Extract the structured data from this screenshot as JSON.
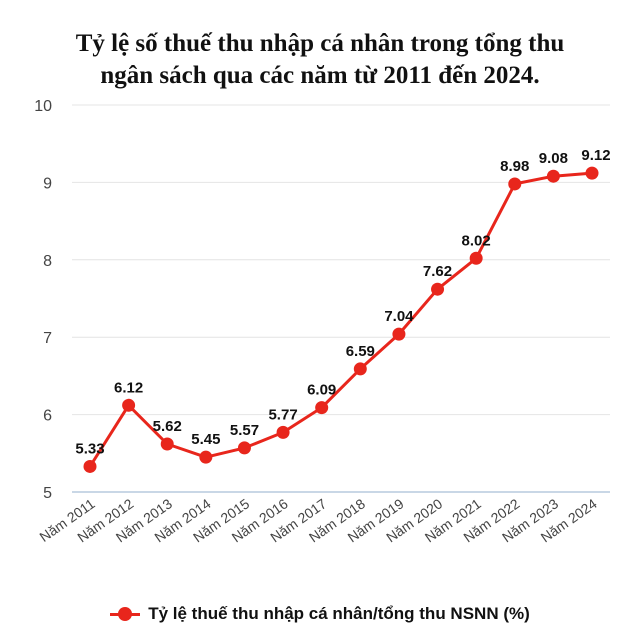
{
  "chart_data": {
    "type": "line",
    "title_lines": [
      "Tỷ lệ số thuế thu nhập cá nhân trong tổng thu",
      "ngân sách qua các năm từ 2011 đến 2024."
    ],
    "categories": [
      "Năm 2011",
      "Năm 2012",
      "Năm 2013",
      "Năm 2014",
      "Năm 2015",
      "Năm 2016",
      "Năm 2017",
      "Năm 2018",
      "Năm 2019",
      "Năm 2020",
      "Năm 2021",
      "Năm 2022",
      "Năm 2023",
      "Năm 2024"
    ],
    "series": [
      {
        "name": "Tỷ lệ thuế thu nhập cá nhân/tổng thu NSNN (%)",
        "values": [
          5.33,
          6.12,
          5.62,
          5.45,
          5.57,
          5.77,
          6.09,
          6.59,
          7.04,
          7.62,
          8.02,
          8.98,
          9.08,
          9.12
        ],
        "labels": [
          "5.33",
          "6.12",
          "5.62",
          "5.45",
          "5.57",
          "5.77",
          "6.09",
          "6.59",
          "7.04",
          "7.62",
          "8.02",
          "8.98",
          "9.08",
          "9.12"
        ],
        "color": "#e8261c"
      }
    ],
    "ylim": [
      5,
      10
    ],
    "yticks": [
      "5",
      "6",
      "7",
      "8",
      "9",
      "10"
    ],
    "grid": true,
    "legend_position": "bottom"
  }
}
